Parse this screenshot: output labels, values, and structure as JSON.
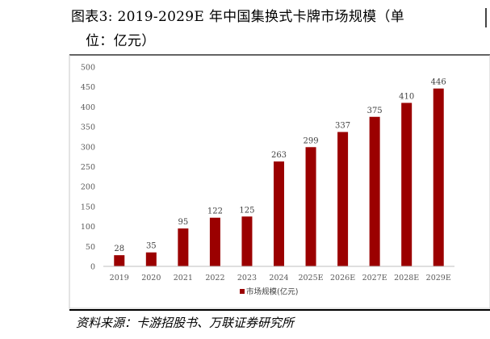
{
  "header": {
    "title_line1": "图表3:   2019-2029E 年中国集换式卡牌市场规模（单",
    "title_line2": "位：亿元）"
  },
  "footer": {
    "source": "资料来源：卡游招股书、万联证券研究所"
  },
  "chart_data": {
    "type": "bar",
    "categories": [
      "2019",
      "2020",
      "2021",
      "2022",
      "2023",
      "2024",
      "2025E",
      "2026E",
      "2027E",
      "2028E",
      "2029E"
    ],
    "series": [
      {
        "name": "市场规模(亿元)",
        "values": [
          28,
          35,
          95,
          122,
          125,
          263,
          299,
          337,
          375,
          410,
          446
        ],
        "color": "#9b0000"
      }
    ],
    "ylim": [
      0,
      500
    ],
    "yticks": [
      0,
      50,
      100,
      150,
      200,
      250,
      300,
      350,
      400,
      450,
      500
    ],
    "grid": false,
    "legend": "bottom-center",
    "data_labels": true,
    "xlabel": "",
    "ylabel": ""
  }
}
